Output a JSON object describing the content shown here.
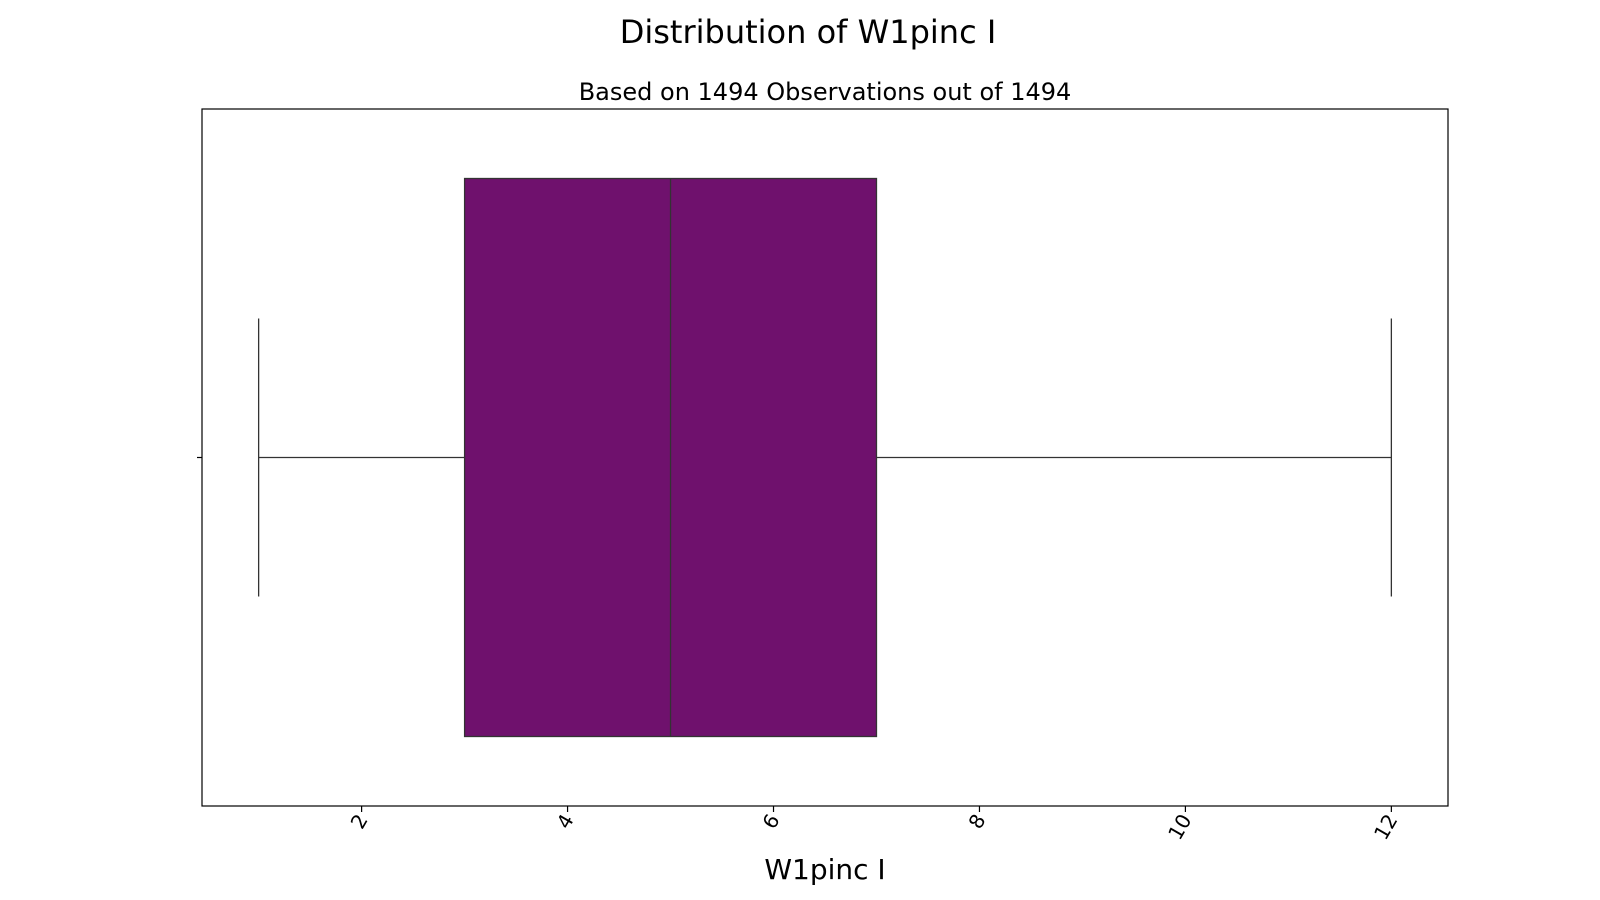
{
  "chart_data": {
    "type": "box",
    "title": "Distribution of W1pinc I",
    "subtitle": "Based on 1494 Observations out of 1494",
    "xlabel": "W1pinc I",
    "ylabel": "",
    "orientation": "horizontal",
    "xlim": [
      0.45,
      12.55
    ],
    "xticks": [
      2,
      4,
      6,
      8,
      10,
      12
    ],
    "xtick_labels": [
      "2",
      "4",
      "6",
      "8",
      "10",
      "12"
    ],
    "xtick_rotation_deg": -60,
    "grid": false,
    "legend": "none",
    "boxes": [
      {
        "whisker_low": 1,
        "q1": 3,
        "median": 5,
        "q3": 7,
        "whisker_high": 12,
        "fill_color": "#6f116d",
        "line_color": "#333333"
      }
    ]
  }
}
